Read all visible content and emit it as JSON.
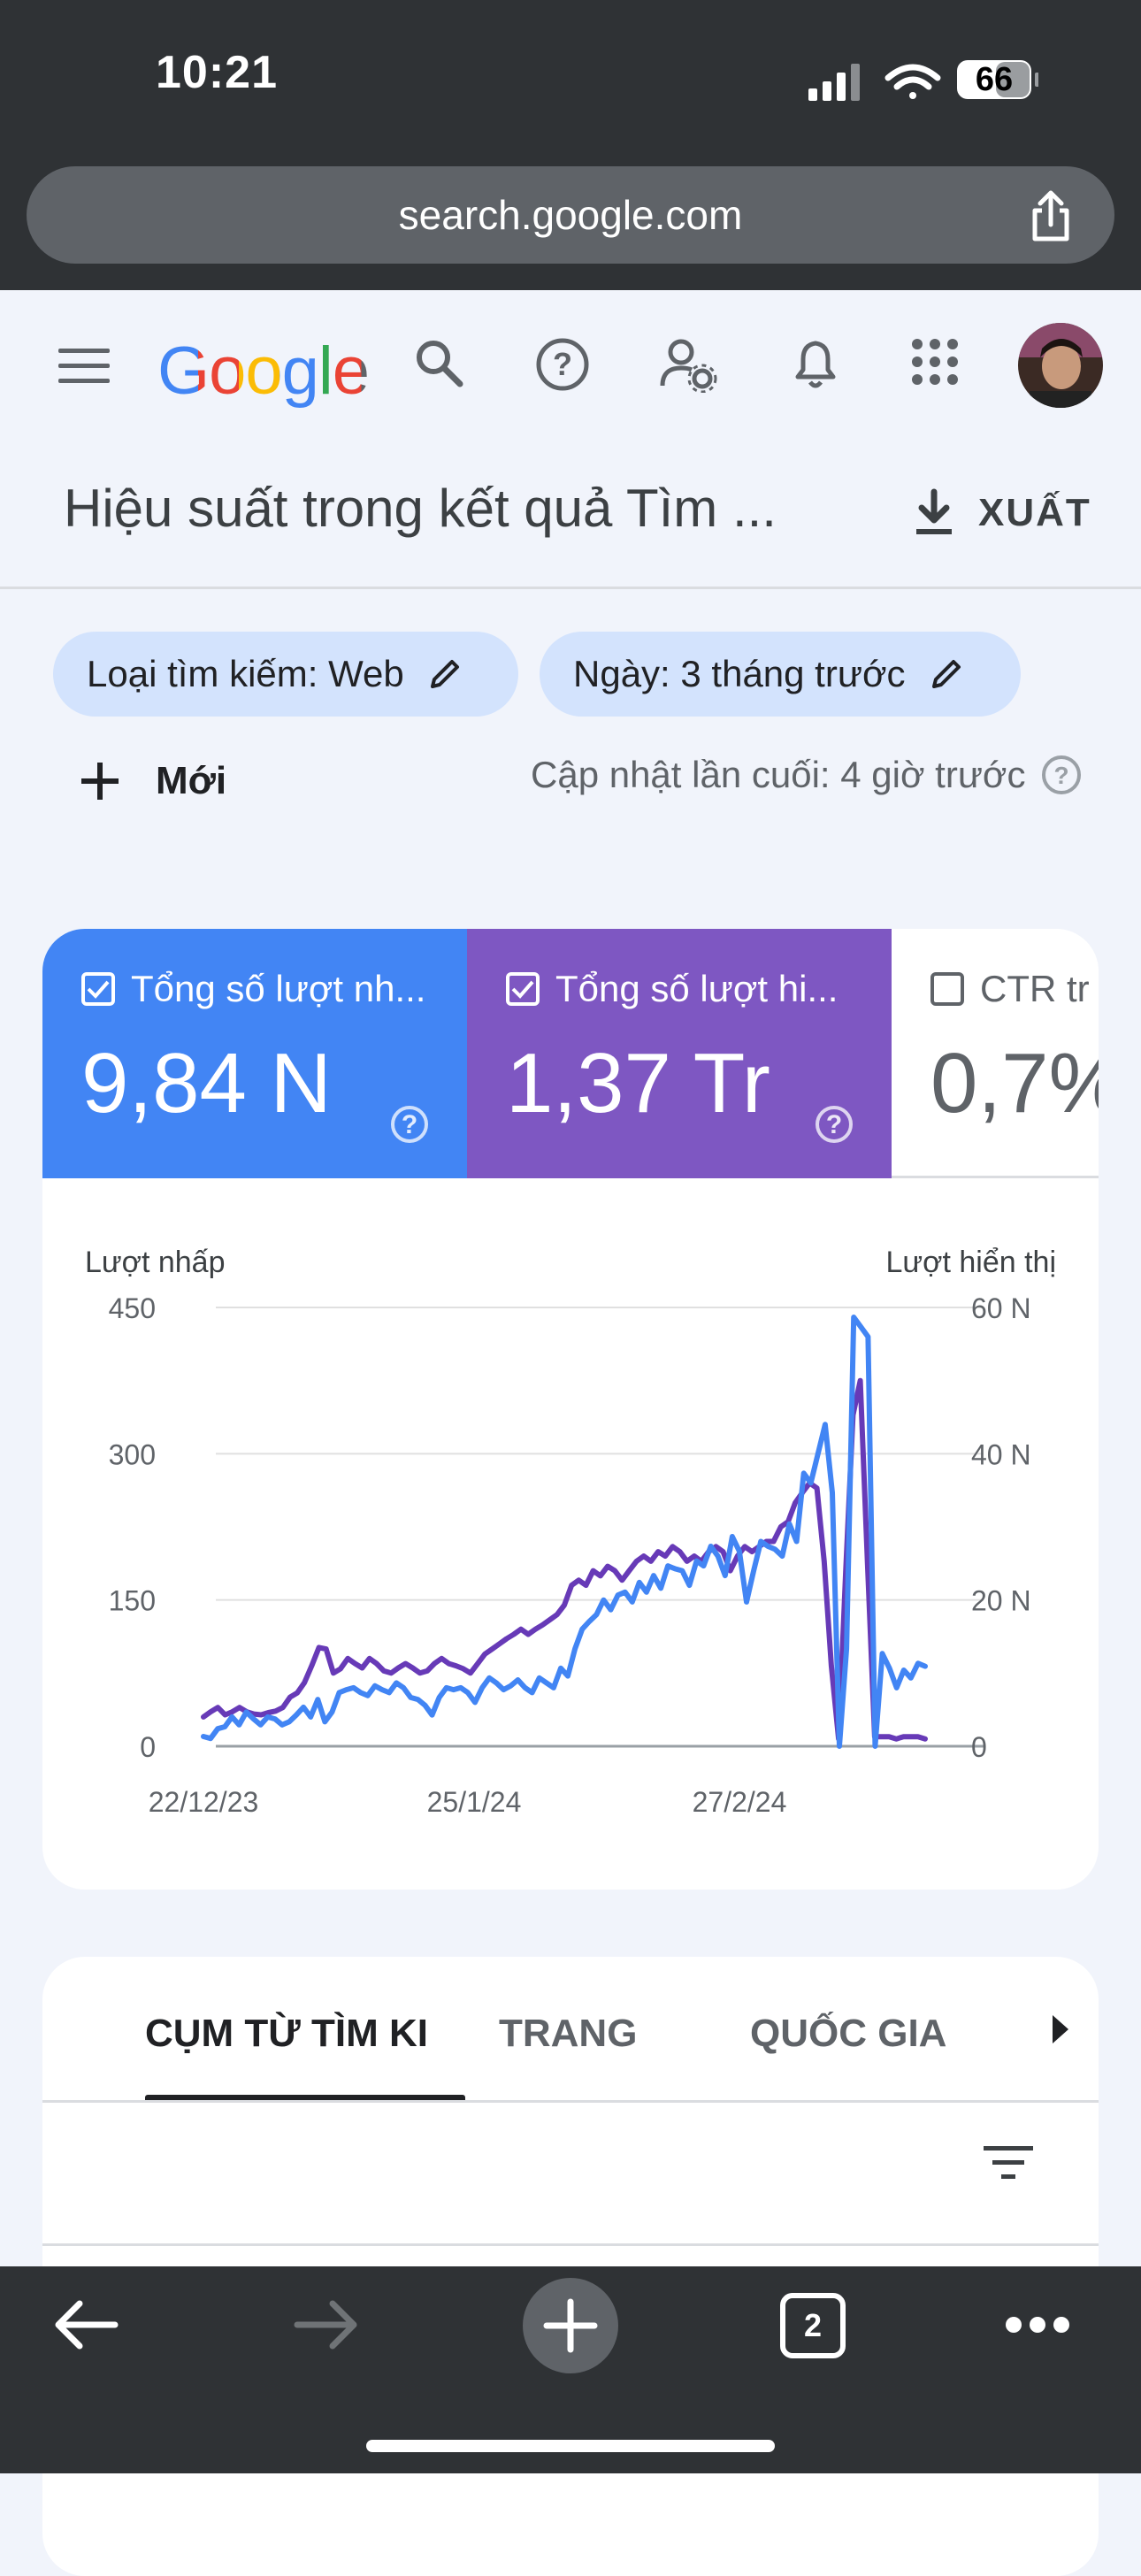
{
  "status_bar": {
    "time": "10:21",
    "battery": "66"
  },
  "browser": {
    "url": "search.google.com",
    "tab_count": "2"
  },
  "header": {
    "logo_visible": "Google S",
    "page_title": "Hiệu suất trong kết quả Tìm ...",
    "export_label": "XUẤT"
  },
  "filters": {
    "chips": [
      "Loại tìm kiếm: Web",
      "Ngày: 3 tháng trước"
    ],
    "new_label": "Mới",
    "last_updated": "Cập nhật lần cuối: 4 giờ trước"
  },
  "metrics": [
    {
      "label": "Tổng số lượt nh...",
      "value": "9,84 N",
      "checked": true,
      "color": "#4285f4"
    },
    {
      "label": "Tổng số lượt hi...",
      "value": "1,37 Tr",
      "checked": true,
      "color": "#7e57c2"
    },
    {
      "label": "CTR tr",
      "value": "0,7%",
      "checked": false,
      "color": "#ffffff"
    }
  ],
  "chart_data": {
    "type": "line",
    "y_left_label": "Lượt nhấp",
    "y_right_label": "Lượt hiển thị",
    "y_left_ticks": [
      "450",
      "300",
      "150",
      "0"
    ],
    "y_right_ticks": [
      "60 N",
      "40 N",
      "20 N",
      "0"
    ],
    "y_left_range": [
      0,
      450
    ],
    "y_right_range": [
      0,
      60000
    ],
    "x_ticks": [
      "22/12/23",
      "25/1/24",
      "27/2/24"
    ],
    "grid": true,
    "series": [
      {
        "name": "Lượt nhấp",
        "axis": "left",
        "color": "#4285f4",
        "values": [
          10,
          8,
          18,
          20,
          30,
          22,
          35,
          28,
          22,
          30,
          28,
          22,
          25,
          32,
          40,
          30,
          48,
          25,
          35,
          55,
          58,
          60,
          55,
          52,
          62,
          58,
          55,
          65,
          60,
          50,
          48,
          42,
          32,
          50,
          60,
          58,
          60,
          55,
          45,
          60,
          70,
          65,
          58,
          62,
          68,
          60,
          55,
          70,
          65,
          60,
          80,
          72,
          100,
          120,
          128,
          135,
          150,
          140,
          155,
          158,
          148,
          168,
          158,
          175,
          162,
          185,
          182,
          180,
          165,
          190,
          185,
          205,
          195,
          175,
          215,
          200,
          148,
          180,
          210,
          205,
          202,
          195,
          228,
          210,
          280,
          270,
          300,
          330,
          260,
          0,
          100,
          440,
          430,
          420,
          0,
          95,
          80,
          60,
          78,
          70,
          85,
          82
        ]
      },
      {
        "name": "Lượt hiển thị",
        "axis": "right",
        "color": "#673ab7",
        "values": [
          4000,
          4700,
          5300,
          4300,
          4700,
          5300,
          4700,
          4400,
          4300,
          4600,
          4800,
          5300,
          6700,
          7300,
          8700,
          11000,
          13500,
          13300,
          10000,
          10600,
          12000,
          11300,
          10700,
          12000,
          11300,
          10300,
          10000,
          10700,
          11300,
          10700,
          10000,
          10300,
          11300,
          12000,
          11300,
          11000,
          10600,
          10000,
          11300,
          12600,
          13300,
          14000,
          14700,
          15300,
          16000,
          15300,
          16000,
          16600,
          17300,
          18000,
          19300,
          22000,
          22700,
          22000,
          24000,
          23300,
          24600,
          24000,
          22700,
          24000,
          25300,
          26000,
          25300,
          26600,
          26000,
          27300,
          26600,
          25300,
          26000,
          25300,
          26600,
          27300,
          26600,
          24000,
          26000,
          27300,
          26600,
          27300,
          28000,
          28000,
          30000,
          30700,
          33300,
          34700,
          36000,
          35300,
          25300,
          11000,
          1000,
          24000,
          45300,
          50000,
          25300,
          1300,
          1300,
          1300,
          1000,
          1300,
          1300,
          1300,
          1000
        ]
      }
    ]
  },
  "tabs": {
    "items": [
      "CỤM TỪ TÌM KI",
      "TRANG",
      "QUỐC GIA"
    ],
    "active_index": 0
  }
}
